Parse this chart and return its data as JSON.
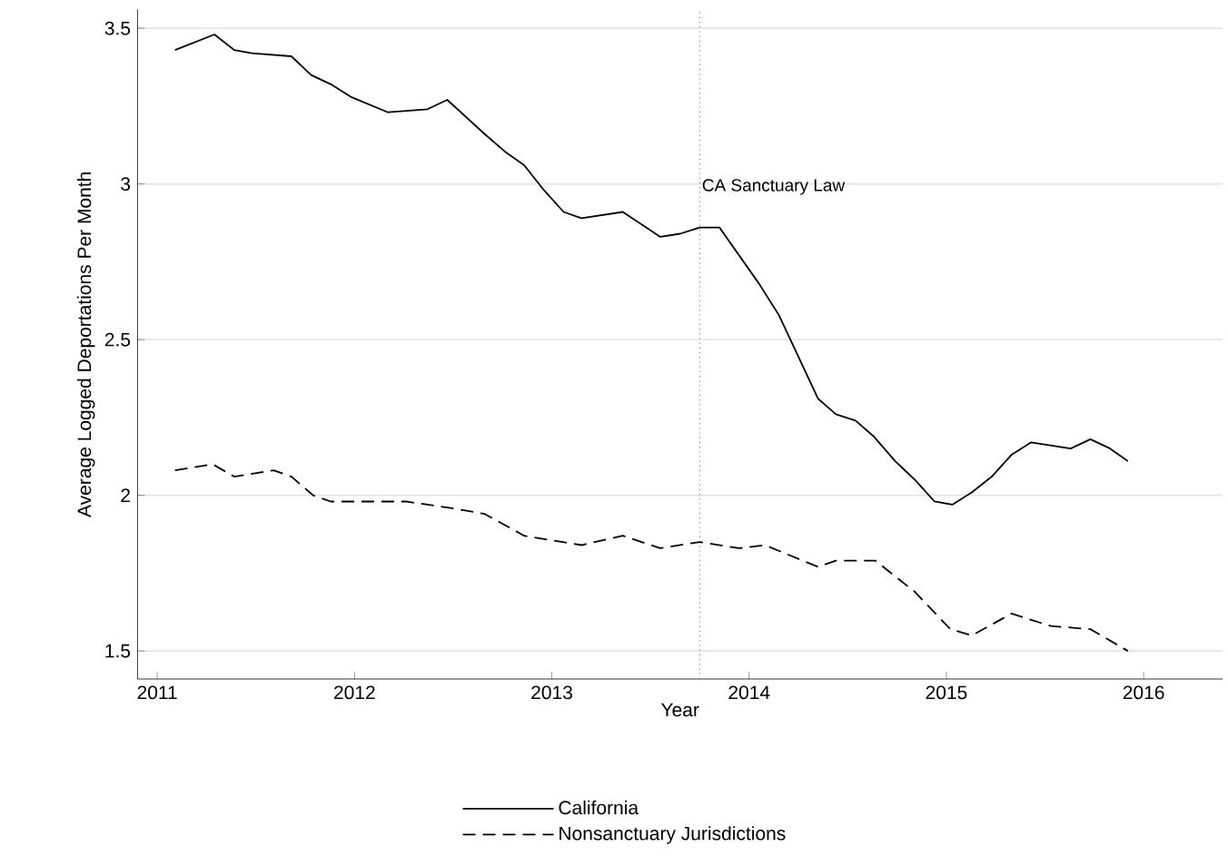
{
  "chart_data": {
    "type": "line",
    "xlabel": "Year",
    "ylabel": "Average Logged Deportations Per Month",
    "xlim": [
      2010.9,
      2016.4
    ],
    "ylim": [
      1.41,
      3.56
    ],
    "xticks": [
      2011,
      2012,
      2013,
      2014,
      2015,
      2016
    ],
    "yticks": [
      1.5,
      2,
      2.5,
      3,
      3.5
    ],
    "grid": "y",
    "legend": "bottom",
    "marker": "none",
    "ref_lines": [
      {
        "axis": "x",
        "value": 2013.75,
        "label": "CA Sanctuary Law",
        "line_style": "dotted",
        "color": "#888888"
      }
    ],
    "series": [
      {
        "name": "California",
        "color": "#000000",
        "line_style": "solid",
        "x": [
          2011.09,
          2011.29,
          2011.39,
          2011.48,
          2011.68,
          2011.78,
          2011.88,
          2011.98,
          2012.17,
          2012.37,
          2012.47,
          2012.66,
          2012.77,
          2012.86,
          2012.96,
          2013.06,
          2013.15,
          2013.36,
          2013.55,
          2013.65,
          2013.75,
          2013.85,
          2014.05,
          2014.15,
          2014.35,
          2014.44,
          2014.54,
          2014.63,
          2014.74,
          2014.84,
          2014.94,
          2015.03,
          2015.13,
          2015.23,
          2015.33,
          2015.43,
          2015.63,
          2015.73,
          2015.83,
          2015.92
        ],
        "values": [
          3.43,
          3.48,
          3.43,
          3.42,
          3.41,
          3.35,
          3.32,
          3.28,
          3.23,
          3.24,
          3.27,
          3.16,
          3.1,
          3.06,
          2.98,
          2.91,
          2.89,
          2.91,
          2.83,
          2.84,
          2.86,
          2.86,
          2.68,
          2.58,
          2.31,
          2.26,
          2.24,
          2.19,
          2.11,
          2.05,
          1.98,
          1.97,
          2.01,
          2.06,
          2.13,
          2.17,
          2.15,
          2.18,
          2.15,
          2.11
        ]
      },
      {
        "name": "Nonsanctuary Jurisdictions",
        "color": "#000000",
        "line_style": "dashed",
        "x": [
          2011.09,
          2011.28,
          2011.39,
          2011.59,
          2011.68,
          2011.79,
          2011.88,
          2012.08,
          2012.26,
          2012.48,
          2012.66,
          2012.86,
          2013.15,
          2013.36,
          2013.55,
          2013.75,
          2013.95,
          2014.08,
          2014.35,
          2014.44,
          2014.64,
          2014.84,
          2015.02,
          2015.13,
          2015.33,
          2015.43,
          2015.53,
          2015.73,
          2015.92
        ],
        "values": [
          2.08,
          2.1,
          2.06,
          2.08,
          2.06,
          2.0,
          1.98,
          1.98,
          1.98,
          1.96,
          1.94,
          1.87,
          1.84,
          1.87,
          1.83,
          1.85,
          1.83,
          1.84,
          1.77,
          1.79,
          1.79,
          1.69,
          1.57,
          1.55,
          1.62,
          1.6,
          1.58,
          1.57,
          1.5
        ]
      }
    ]
  }
}
